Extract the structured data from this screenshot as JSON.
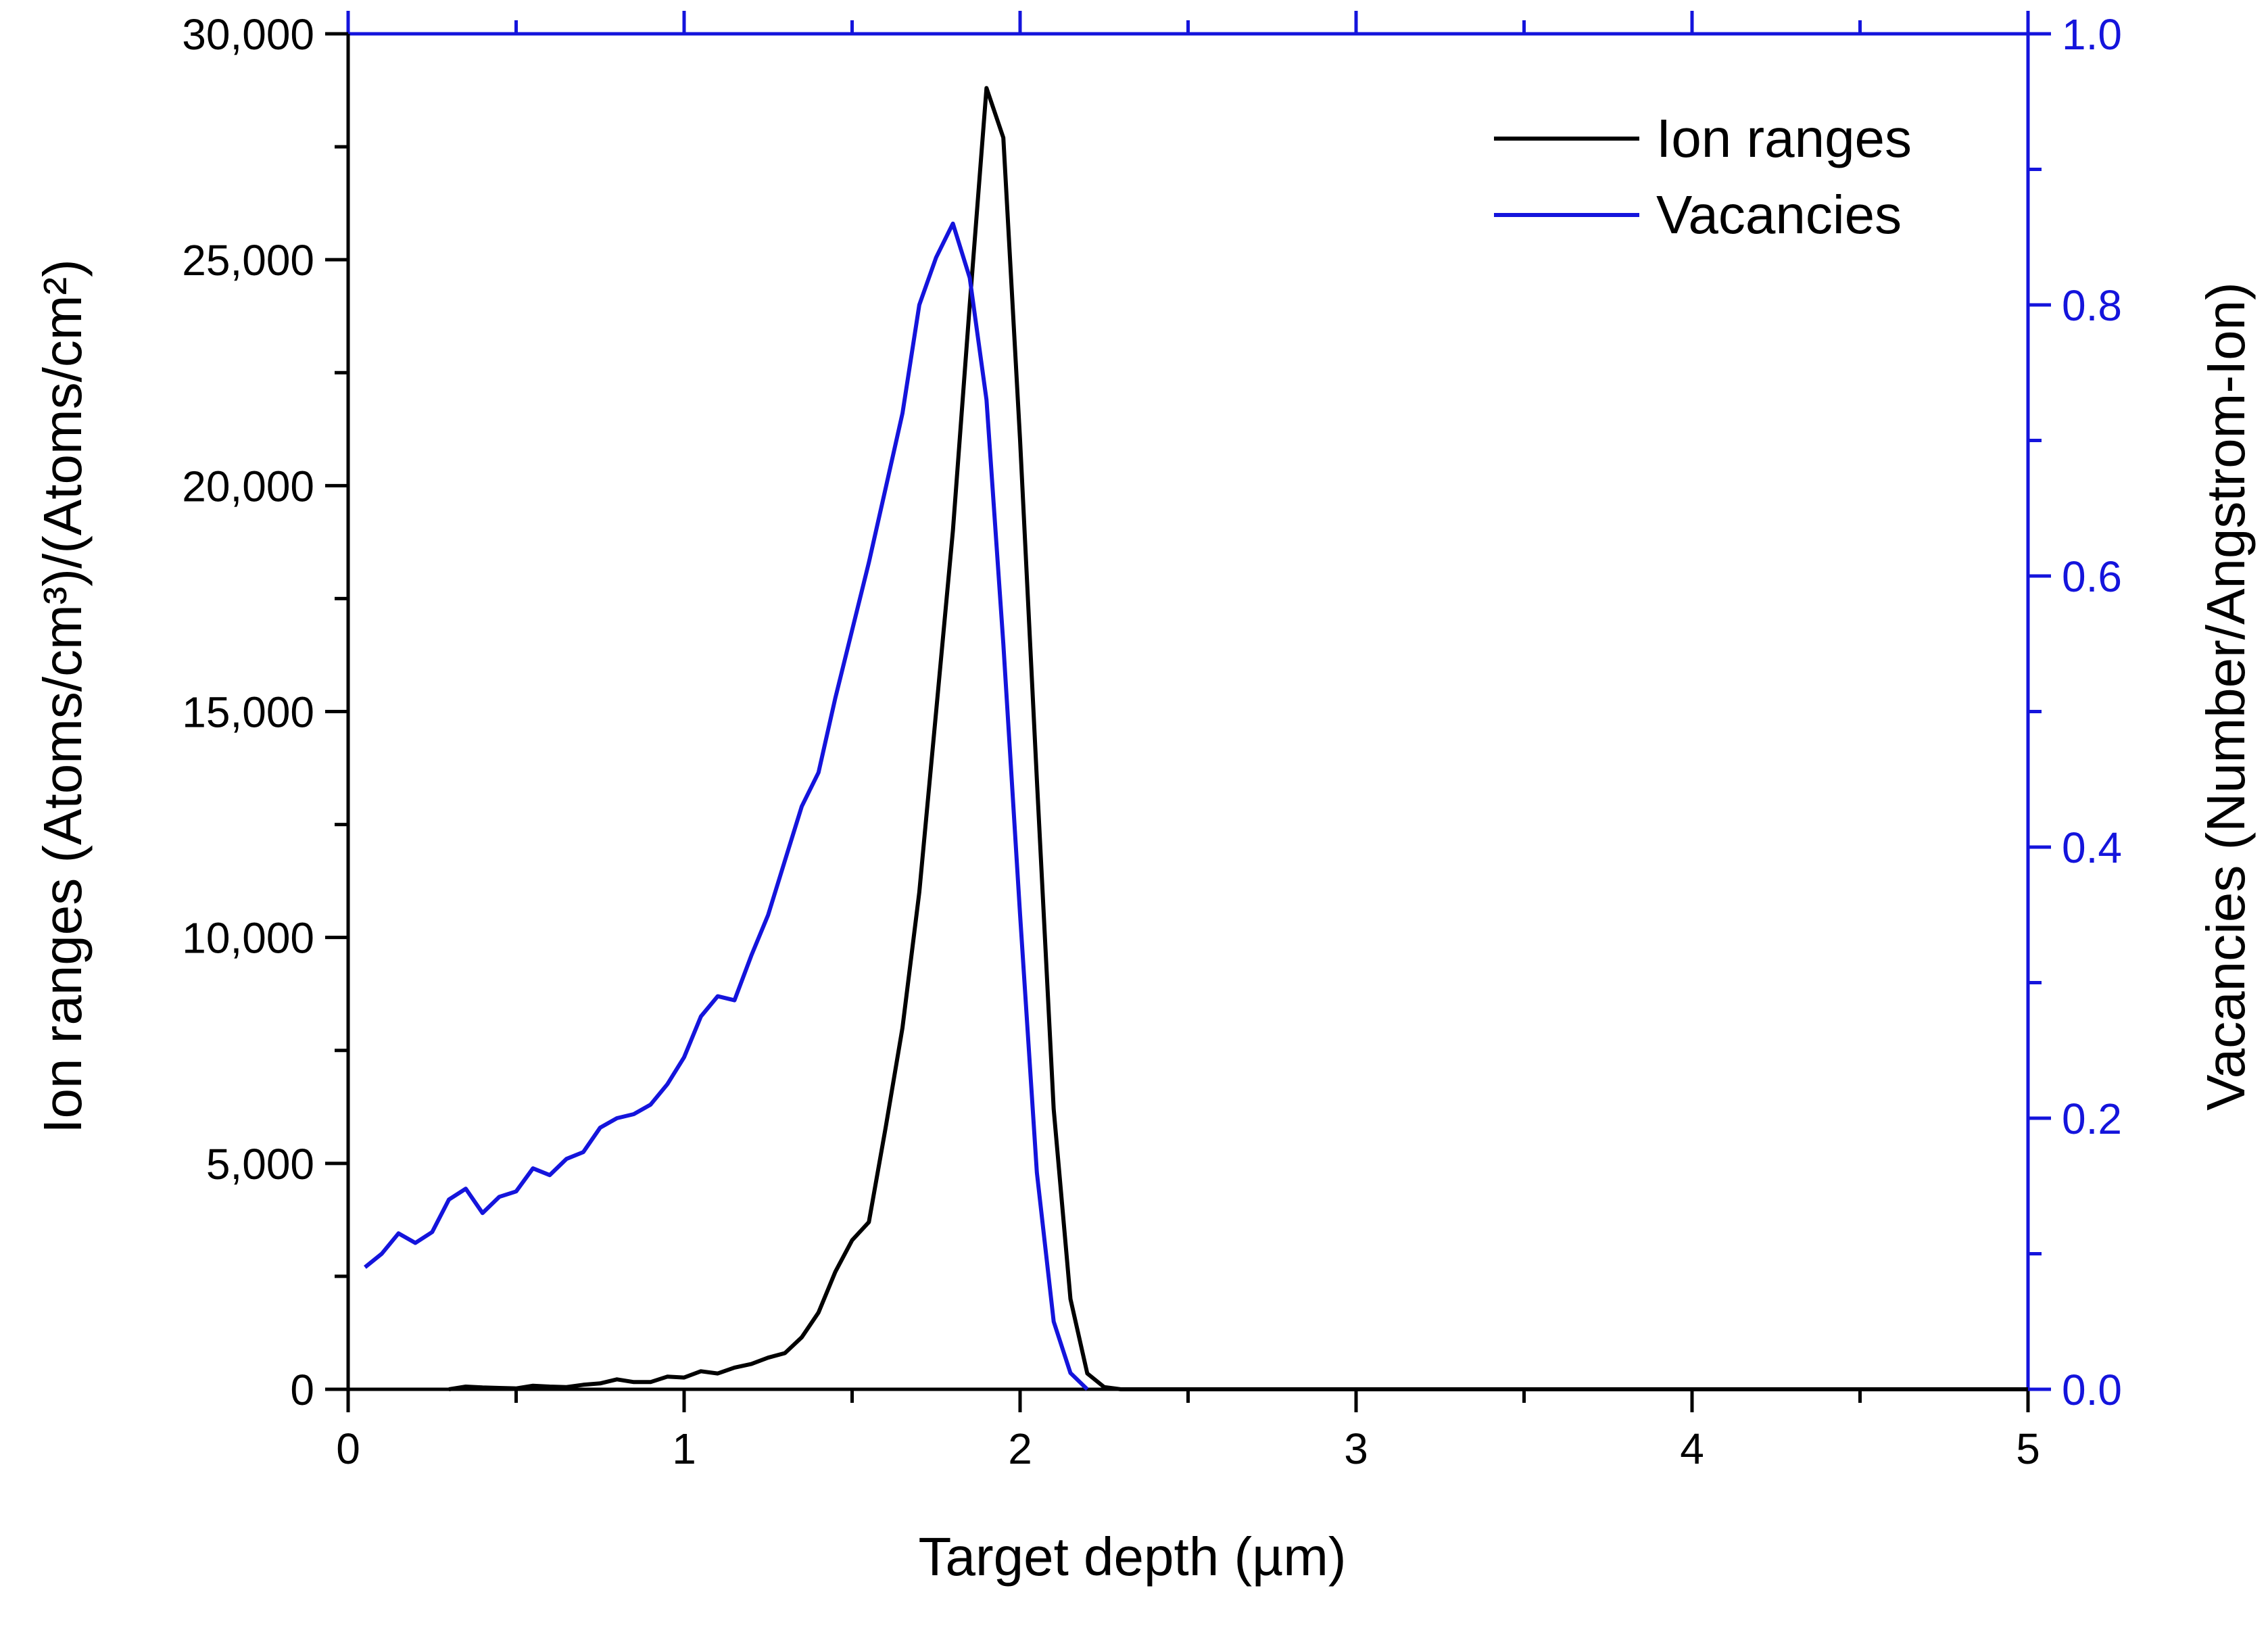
{
  "chart_data": {
    "type": "line",
    "title": "",
    "xlabel": "Target depth (µm)",
    "ylabel_left": "Ion ranges (Atoms/cm³)/(Atoms/cm²)",
    "ylabel_right": "Vacancies (Number/Angstrom-Ion)",
    "xlim": [
      0,
      5
    ],
    "ylim_left": [
      0,
      30000
    ],
    "ylim_right": [
      0,
      1.0
    ],
    "x_ticks": [
      "0",
      "1",
      "2",
      "3",
      "4",
      "5"
    ],
    "y_left_ticks": [
      "0",
      "5,000",
      "10,000",
      "15,000",
      "20,000",
      "25,000",
      "30,000"
    ],
    "y_right_ticks": [
      "0.0",
      "0.2",
      "0.4",
      "0.6",
      "0.8",
      "1.0"
    ],
    "grid": false,
    "legend_position": "top-right",
    "colors": {
      "ion": "#000000",
      "vac": "#1414dc"
    },
    "series": [
      {
        "name": "Ion ranges",
        "axis": "left",
        "x": [
          0.3,
          0.35,
          0.4,
          0.45,
          0.5,
          0.55,
          0.6,
          0.65,
          0.7,
          0.75,
          0.8,
          0.85,
          0.9,
          0.95,
          1.0,
          1.05,
          1.1,
          1.15,
          1.2,
          1.25,
          1.3,
          1.35,
          1.4,
          1.45,
          1.5,
          1.55,
          1.6,
          1.65,
          1.7,
          1.75,
          1.8,
          1.85,
          1.9,
          1.95,
          2.0,
          2.05,
          2.1,
          2.15,
          2.2,
          2.25,
          2.3,
          2.35,
          2.4,
          5.0
        ],
        "values": [
          0,
          60,
          40,
          30,
          20,
          80,
          60,
          50,
          100,
          130,
          220,
          160,
          160,
          280,
          260,
          400,
          350,
          480,
          560,
          700,
          800,
          1150,
          1700,
          2600,
          3300,
          3700,
          5800,
          8000,
          11000,
          15000,
          19000,
          24000,
          28800,
          27700,
          21000,
          13500,
          6200,
          2000,
          350,
          50,
          0,
          0,
          0,
          0
        ]
      },
      {
        "name": "Vacancies",
        "axis": "right",
        "x": [
          0.05,
          0.1,
          0.15,
          0.2,
          0.25,
          0.3,
          0.35,
          0.4,
          0.45,
          0.5,
          0.55,
          0.6,
          0.65,
          0.7,
          0.75,
          0.8,
          0.85,
          0.9,
          0.95,
          1.0,
          1.05,
          1.1,
          1.15,
          1.2,
          1.25,
          1.3,
          1.35,
          1.4,
          1.45,
          1.5,
          1.55,
          1.6,
          1.65,
          1.7,
          1.75,
          1.8,
          1.85,
          1.9,
          1.95,
          2.0,
          2.05,
          2.1,
          2.15,
          2.2
        ],
        "values": [
          0.09,
          0.1,
          0.115,
          0.108,
          0.116,
          0.14,
          0.148,
          0.13,
          0.142,
          0.146,
          0.163,
          0.158,
          0.17,
          0.175,
          0.193,
          0.2,
          0.203,
          0.21,
          0.225,
          0.245,
          0.275,
          0.29,
          0.287,
          0.32,
          0.35,
          0.39,
          0.43,
          0.455,
          0.51,
          0.56,
          0.61,
          0.665,
          0.72,
          0.8,
          0.835,
          0.86,
          0.82,
          0.73,
          0.55,
          0.35,
          0.16,
          0.05,
          0.012,
          0.0
        ]
      }
    ]
  }
}
